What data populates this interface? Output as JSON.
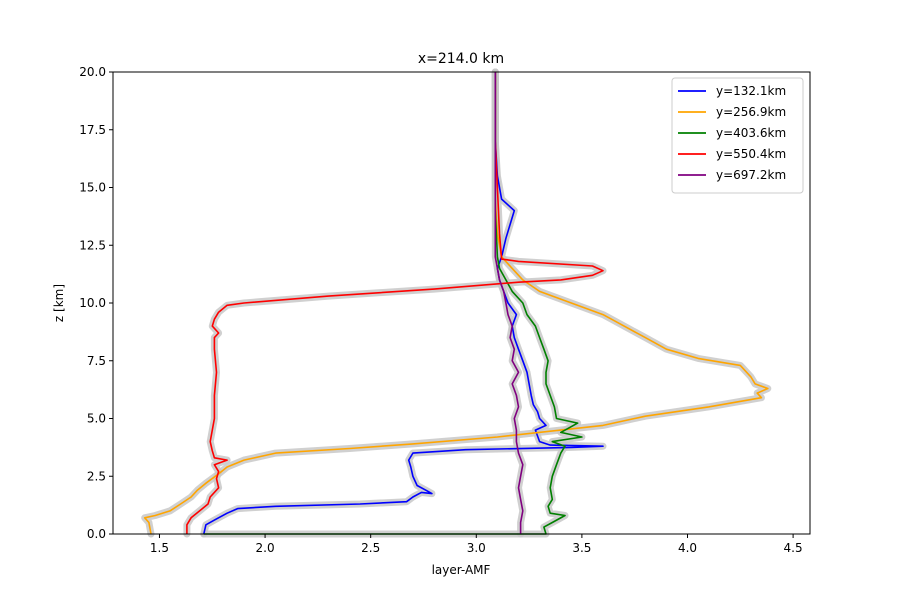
{
  "chart_data": {
    "type": "line",
    "title": "x=214.0 km",
    "xlabel": "layer-AMF",
    "ylabel": "z [km]",
    "xlim": [
      1.28,
      4.58
    ],
    "ylim": [
      0,
      20
    ],
    "xticks": [
      1.5,
      2.0,
      2.5,
      3.0,
      3.5,
      4.0,
      4.5
    ],
    "yticks": [
      0.0,
      2.5,
      5.0,
      7.5,
      10.0,
      12.5,
      15.0,
      17.5,
      20.0
    ],
    "xtick_labels": [
      "1.5",
      "2.0",
      "2.5",
      "3.0",
      "3.5",
      "4.0",
      "4.5"
    ],
    "ytick_labels": [
      "0.0",
      "2.5",
      "5.0",
      "7.5",
      "10.0",
      "12.5",
      "15.0",
      "17.5",
      "20.0"
    ],
    "legend_position": "top-right",
    "grid": false,
    "band_color": "#c8c8c8",
    "series": [
      {
        "name": "y=132.1km",
        "color": "#0000ff",
        "points": [
          [
            1.71,
            0.0
          ],
          [
            1.72,
            0.4
          ],
          [
            1.76,
            0.6
          ],
          [
            1.82,
            0.9
          ],
          [
            1.87,
            1.1
          ],
          [
            2.05,
            1.2
          ],
          [
            2.45,
            1.3
          ],
          [
            2.67,
            1.4
          ],
          [
            2.7,
            1.6
          ],
          [
            2.74,
            1.8
          ],
          [
            2.79,
            1.75
          ],
          [
            2.76,
            1.9
          ],
          [
            2.72,
            2.1
          ],
          [
            2.7,
            2.5
          ],
          [
            2.69,
            2.9
          ],
          [
            2.68,
            3.2
          ],
          [
            2.7,
            3.5
          ],
          [
            2.95,
            3.65
          ],
          [
            3.45,
            3.75
          ],
          [
            3.6,
            3.8
          ],
          [
            3.35,
            3.85
          ],
          [
            3.3,
            4.0
          ],
          [
            3.28,
            4.5
          ],
          [
            3.33,
            4.7
          ],
          [
            3.3,
            5.0
          ],
          [
            3.29,
            5.3
          ],
          [
            3.27,
            5.6
          ],
          [
            3.26,
            6.0
          ],
          [
            3.25,
            6.5
          ],
          [
            3.24,
            7.0
          ],
          [
            3.22,
            7.5
          ],
          [
            3.2,
            8.0
          ],
          [
            3.18,
            8.5
          ],
          [
            3.17,
            9.0
          ],
          [
            3.19,
            9.5
          ],
          [
            3.15,
            10.0
          ],
          [
            3.13,
            10.5
          ],
          [
            3.11,
            11.0
          ],
          [
            3.1,
            11.5
          ],
          [
            3.12,
            12.0
          ],
          [
            3.14,
            12.8
          ],
          [
            3.18,
            14.0
          ],
          [
            3.12,
            14.5
          ],
          [
            3.1,
            15.5
          ],
          [
            3.09,
            17.0
          ],
          [
            3.09,
            18.5
          ],
          [
            3.09,
            20.0
          ]
        ]
      },
      {
        "name": "y=256.9km",
        "color": "#ffa500",
        "points": [
          [
            1.46,
            0.0
          ],
          [
            1.45,
            0.5
          ],
          [
            1.43,
            0.7
          ],
          [
            1.48,
            0.8
          ],
          [
            1.55,
            1.0
          ],
          [
            1.6,
            1.3
          ],
          [
            1.65,
            1.6
          ],
          [
            1.68,
            1.9
          ],
          [
            1.72,
            2.2
          ],
          [
            1.78,
            2.6
          ],
          [
            1.82,
            2.9
          ],
          [
            1.9,
            3.2
          ],
          [
            2.05,
            3.5
          ],
          [
            2.4,
            3.7
          ],
          [
            2.7,
            3.9
          ],
          [
            3.1,
            4.2
          ],
          [
            3.6,
            4.7
          ],
          [
            3.8,
            5.1
          ],
          [
            4.1,
            5.5
          ],
          [
            4.35,
            5.9
          ],
          [
            4.33,
            6.1
          ],
          [
            4.38,
            6.3
          ],
          [
            4.32,
            6.5
          ],
          [
            4.3,
            6.8
          ],
          [
            4.25,
            7.3
          ],
          [
            4.05,
            7.6
          ],
          [
            3.9,
            8.0
          ],
          [
            3.8,
            8.5
          ],
          [
            3.7,
            9.0
          ],
          [
            3.6,
            9.5
          ],
          [
            3.45,
            10.0
          ],
          [
            3.3,
            10.5
          ],
          [
            3.22,
            11.0
          ],
          [
            3.17,
            11.5
          ],
          [
            3.12,
            12.0
          ],
          [
            3.1,
            13.0
          ],
          [
            3.09,
            14.5
          ],
          [
            3.09,
            16.0
          ],
          [
            3.09,
            18.0
          ],
          [
            3.09,
            20.0
          ]
        ]
      },
      {
        "name": "y=403.6km",
        "color": "#008000",
        "points": [
          [
            1.71,
            0.0
          ],
          [
            1.71,
            0.0
          ],
          [
            3.33,
            0.0
          ],
          [
            3.32,
            0.3
          ],
          [
            3.36,
            0.5
          ],
          [
            3.42,
            0.8
          ],
          [
            3.35,
            0.9
          ],
          [
            3.34,
            1.2
          ],
          [
            3.36,
            1.5
          ],
          [
            3.35,
            2.0
          ],
          [
            3.36,
            2.5
          ],
          [
            3.38,
            3.0
          ],
          [
            3.4,
            3.5
          ],
          [
            3.42,
            3.8
          ],
          [
            3.36,
            4.0
          ],
          [
            3.5,
            4.2
          ],
          [
            3.4,
            4.4
          ],
          [
            3.48,
            4.8
          ],
          [
            3.38,
            5.0
          ],
          [
            3.37,
            5.5
          ],
          [
            3.35,
            6.0
          ],
          [
            3.33,
            6.5
          ],
          [
            3.33,
            7.0
          ],
          [
            3.34,
            7.5
          ],
          [
            3.32,
            8.0
          ],
          [
            3.3,
            8.5
          ],
          [
            3.28,
            9.0
          ],
          [
            3.24,
            9.5
          ],
          [
            3.22,
            10.0
          ],
          [
            3.17,
            10.5
          ],
          [
            3.14,
            11.0
          ],
          [
            3.11,
            11.5
          ],
          [
            3.1,
            12.0
          ],
          [
            3.09,
            14.0
          ],
          [
            3.09,
            17.0
          ],
          [
            3.09,
            20.0
          ]
        ]
      },
      {
        "name": "y=550.4km",
        "color": "#ff0000",
        "points": [
          [
            1.63,
            0.0
          ],
          [
            1.63,
            0.4
          ],
          [
            1.65,
            0.7
          ],
          [
            1.69,
            1.0
          ],
          [
            1.73,
            1.3
          ],
          [
            1.74,
            1.6
          ],
          [
            1.78,
            2.0
          ],
          [
            1.77,
            2.4
          ],
          [
            1.78,
            2.7
          ],
          [
            1.76,
            3.0
          ],
          [
            1.82,
            3.2
          ],
          [
            1.76,
            3.3
          ],
          [
            1.75,
            3.6
          ],
          [
            1.74,
            4.0
          ],
          [
            1.76,
            5.0
          ],
          [
            1.76,
            6.0
          ],
          [
            1.77,
            7.0
          ],
          [
            1.76,
            8.0
          ],
          [
            1.76,
            8.5
          ],
          [
            1.78,
            8.7
          ],
          [
            1.75,
            9.0
          ],
          [
            1.76,
            9.3
          ],
          [
            1.78,
            9.6
          ],
          [
            1.82,
            9.9
          ],
          [
            1.9,
            10.0
          ],
          [
            2.3,
            10.3
          ],
          [
            2.8,
            10.6
          ],
          [
            3.2,
            10.9
          ],
          [
            3.4,
            11.0
          ],
          [
            3.55,
            11.2
          ],
          [
            3.6,
            11.4
          ],
          [
            3.55,
            11.6
          ],
          [
            3.2,
            11.8
          ],
          [
            3.12,
            11.9
          ],
          [
            3.11,
            13.0
          ],
          [
            3.1,
            15.0
          ],
          [
            3.09,
            17.0
          ],
          [
            3.09,
            20.0
          ]
        ]
      },
      {
        "name": "y=697.2km",
        "color": "#800080",
        "points": [
          [
            3.21,
            0.0
          ],
          [
            3.21,
            0.5
          ],
          [
            3.22,
            1.0
          ],
          [
            3.21,
            1.5
          ],
          [
            3.2,
            2.0
          ],
          [
            3.21,
            2.5
          ],
          [
            3.22,
            3.0
          ],
          [
            3.2,
            3.5
          ],
          [
            3.19,
            4.0
          ],
          [
            3.19,
            4.5
          ],
          [
            3.18,
            5.0
          ],
          [
            3.2,
            5.5
          ],
          [
            3.19,
            6.0
          ],
          [
            3.17,
            6.5
          ],
          [
            3.2,
            7.0
          ],
          [
            3.17,
            7.5
          ],
          [
            3.18,
            8.0
          ],
          [
            3.16,
            8.5
          ],
          [
            3.17,
            9.0
          ],
          [
            3.15,
            9.5
          ],
          [
            3.14,
            10.0
          ],
          [
            3.13,
            10.5
          ],
          [
            3.11,
            11.0
          ],
          [
            3.1,
            11.5
          ],
          [
            3.09,
            12.0
          ],
          [
            3.09,
            13.5
          ],
          [
            3.09,
            15.5
          ],
          [
            3.09,
            17.5
          ],
          [
            3.09,
            20.0
          ]
        ]
      }
    ]
  }
}
